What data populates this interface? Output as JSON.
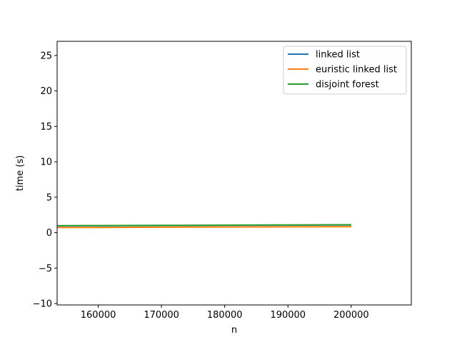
{
  "chart_data": {
    "type": "line",
    "xlabel": "n",
    "ylabel": "time (s)",
    "xlim": [
      153500,
      209500
    ],
    "ylim": [
      -10.2,
      27.0
    ],
    "xticks": [
      160000,
      170000,
      180000,
      190000,
      200000
    ],
    "yticks": [
      -10,
      -5,
      0,
      5,
      10,
      15,
      20,
      25
    ],
    "grid": false,
    "legend_position": "upper right",
    "series": [
      {
        "name": "linked list",
        "color": "#1f77b4",
        "x": [
          153500,
          160000,
          170000,
          180000,
          190000,
          200000
        ],
        "y": [
          0.95,
          0.97,
          1.0,
          1.03,
          1.06,
          1.08
        ]
      },
      {
        "name": "euristic linked list",
        "color": "#ff7f0e",
        "x": [
          153500,
          160000,
          170000,
          180000,
          190000,
          200000
        ],
        "y": [
          0.72,
          0.74,
          0.77,
          0.8,
          0.82,
          0.85
        ]
      },
      {
        "name": "disjoint forest",
        "color": "#2ca02c",
        "x": [
          153500,
          160000,
          170000,
          180000,
          190000,
          200000
        ],
        "y": [
          0.98,
          1.0,
          1.03,
          1.06,
          1.09,
          1.12
        ]
      }
    ]
  }
}
